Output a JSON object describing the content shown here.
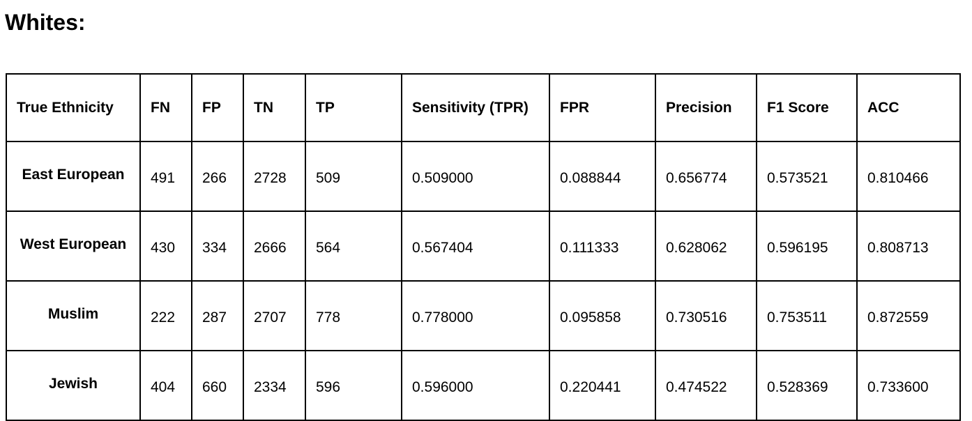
{
  "heading": "Whites:",
  "table": {
    "columns": [
      "True Ethnicity",
      "FN",
      "FP",
      "TN",
      "TP",
      "Sensitivity (TPR)",
      "FPR",
      "Precision",
      "F1 Score",
      "ACC"
    ],
    "rows": [
      [
        "East European",
        "491",
        "266",
        "2728",
        "509",
        "0.509000",
        "0.088844",
        "0.656774",
        "0.573521",
        "0.810466"
      ],
      [
        "West European",
        "430",
        "334",
        "2666",
        "564",
        "0.567404",
        "0.111333",
        "0.628062",
        "0.596195",
        "0.808713"
      ],
      [
        "Muslim",
        "222",
        "287",
        "2707",
        "778",
        "0.778000",
        "0.095858",
        "0.730516",
        "0.753511",
        "0.872559"
      ],
      [
        "Jewish",
        "404",
        "660",
        "2334",
        "596",
        "0.596000",
        "0.220441",
        "0.474522",
        "0.528369",
        "0.733600"
      ]
    ]
  }
}
